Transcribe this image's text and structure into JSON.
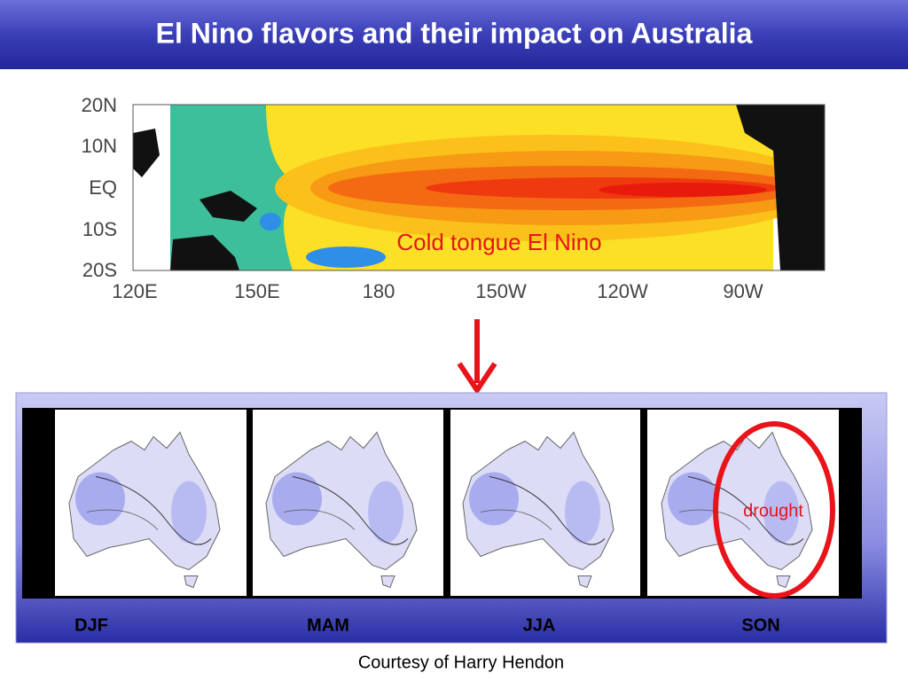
{
  "header": {
    "title": "El Nino flavors and their impact on Australia"
  },
  "sst_map": {
    "lat_labels": [
      "20N",
      "10N",
      "EQ",
      "10S",
      "20S"
    ],
    "lon_labels": [
      "120E",
      "150E",
      "180",
      "150W",
      "120W",
      "90W"
    ],
    "annotation": "Cold tongue El Nino"
  },
  "panel": {
    "seasons": [
      "DJF",
      "MAM",
      "JJA",
      "SON"
    ],
    "annotation": "drought"
  },
  "footer": {
    "credit": "Courtesy of Harry Hendon"
  }
}
